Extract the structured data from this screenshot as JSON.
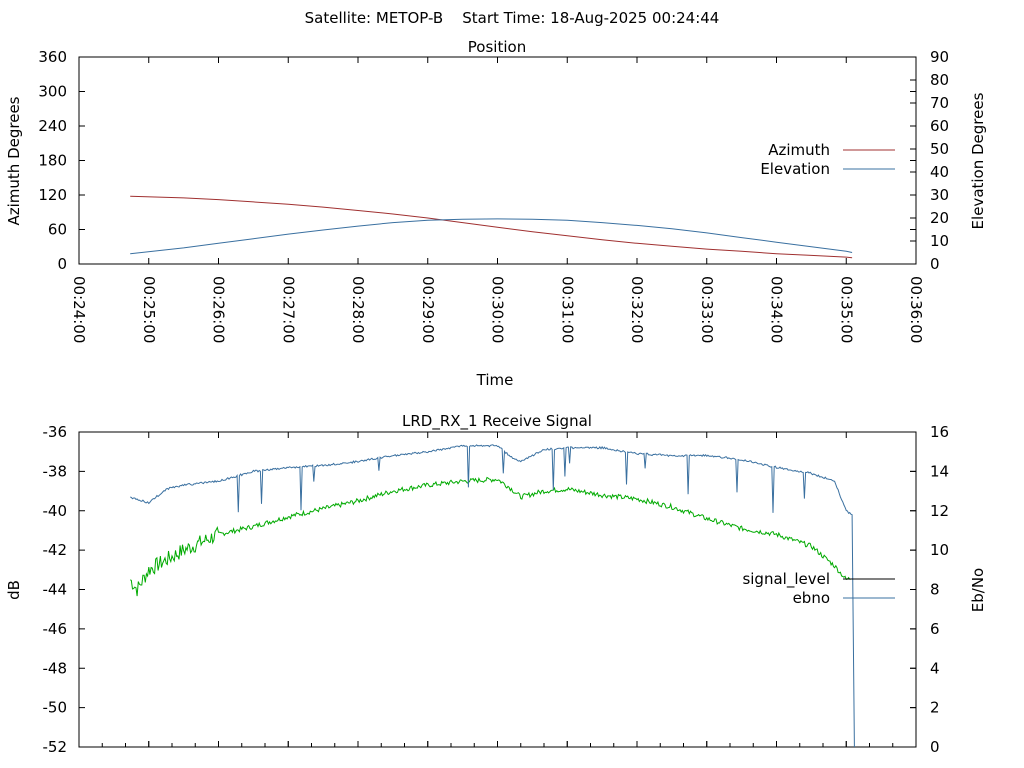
{
  "suptitle": "Satellite: METOP-B    Start Time: 18-Aug-2025 00:24:44",
  "chart_data": [
    {
      "type": "line",
      "title": "Position",
      "xlabel": "Time",
      "ylabel": "Azimuth Degrees",
      "y2label": "Elevation Degrees",
      "x_ticks": [
        "00:24:00",
        "00:25:00",
        "00:26:00",
        "00:27:00",
        "00:28:00",
        "00:29:00",
        "00:30:00",
        "00:31:00",
        "00:32:00",
        "00:33:00",
        "00:34:00",
        "00:35:00",
        "00:36:00"
      ],
      "xlim": [
        "00:24:00",
        "00:36:00"
      ],
      "ylim": [
        0,
        360
      ],
      "y_ticks": [
        "0",
        "60",
        "120",
        "180",
        "240",
        "300",
        "360"
      ],
      "y2lim": [
        0,
        90
      ],
      "y2_ticks": [
        "0",
        "10",
        "20",
        "30",
        "40",
        "50",
        "60",
        "70",
        "80",
        "90"
      ],
      "legend_position": "right",
      "grid": false,
      "series": [
        {
          "name": "Azimuth",
          "axis": "left",
          "color": "#a03030",
          "x": [
            "00:24:44",
            "00:25:30",
            "00:26:00",
            "00:26:30",
            "00:27:00",
            "00:27:30",
            "00:28:00",
            "00:28:30",
            "00:29:00",
            "00:29:30",
            "00:30:00",
            "00:30:30",
            "00:31:00",
            "00:31:30",
            "00:32:00",
            "00:32:30",
            "00:33:00",
            "00:33:30",
            "00:34:00",
            "00:34:30",
            "00:35:00",
            "00:35:05"
          ],
          "values": [
            118,
            115,
            112,
            108,
            104,
            99,
            93,
            87,
            80,
            72,
            64,
            56,
            49,
            42,
            36,
            31,
            26,
            22,
            18,
            15,
            12,
            11
          ]
        },
        {
          "name": "Elevation",
          "axis": "right",
          "color": "#3a70a0",
          "x": [
            "00:24:44",
            "00:25:30",
            "00:26:00",
            "00:26:30",
            "00:27:00",
            "00:27:30",
            "00:28:00",
            "00:28:30",
            "00:29:00",
            "00:29:30",
            "00:30:00",
            "00:30:30",
            "00:31:00",
            "00:31:30",
            "00:32:00",
            "00:32:30",
            "00:33:00",
            "00:33:30",
            "00:34:00",
            "00:34:30",
            "00:35:00",
            "00:35:05"
          ],
          "values": [
            4.5,
            7,
            9,
            11,
            13,
            14.8,
            16.5,
            18,
            19,
            19.5,
            19.6,
            19.5,
            19,
            18,
            16.8,
            15.3,
            13.5,
            11.5,
            9.5,
            7.5,
            5.5,
            5
          ]
        }
      ]
    },
    {
      "type": "line",
      "title": "LRD_RX_1 Receive Signal",
      "xlabel": "",
      "ylabel": "dB",
      "y2label": "Eb/No",
      "xlim": [
        "00:24:00",
        "00:36:00"
      ],
      "ylim": [
        -52,
        -36
      ],
      "y_ticks": [
        "-52",
        "-50",
        "-48",
        "-46",
        "-44",
        "-42",
        "-40",
        "-38",
        "-36"
      ],
      "y2lim": [
        0,
        16
      ],
      "y2_ticks": [
        "0",
        "2",
        "4",
        "6",
        "8",
        "10",
        "12",
        "14",
        "16"
      ],
      "legend_position": "right",
      "grid": false,
      "series": [
        {
          "name": "signal_level",
          "axis": "left",
          "color": "#00aa00",
          "x": [
            "00:24:44",
            "00:24:50",
            "00:25:00",
            "00:25:15",
            "00:25:30",
            "00:26:00",
            "00:26:30",
            "00:27:00",
            "00:27:30",
            "00:28:00",
            "00:28:30",
            "00:29:00",
            "00:29:30",
            "00:30:00",
            "00:30:10",
            "00:30:20",
            "00:30:40",
            "00:31:00",
            "00:31:30",
            "00:32:00",
            "00:32:30",
            "00:33:00",
            "00:33:30",
            "00:34:00",
            "00:34:30",
            "00:34:50",
            "00:35:00",
            "00:35:05"
          ],
          "values": [
            -43.5,
            -44.0,
            -43.0,
            -42.5,
            -42.0,
            -41.2,
            -40.8,
            -40.3,
            -39.9,
            -39.5,
            -39.0,
            -38.7,
            -38.5,
            -38.4,
            -38.8,
            -39.3,
            -39.0,
            -38.9,
            -39.2,
            -39.4,
            -39.8,
            -40.4,
            -40.9,
            -41.2,
            -41.8,
            -42.8,
            -43.5,
            -43.4
          ]
        },
        {
          "name": "ebno",
          "axis": "right",
          "color": "#3a70a0",
          "x": [
            "00:24:44",
            "00:25:00",
            "00:25:15",
            "00:25:30",
            "00:26:00",
            "00:26:30",
            "00:27:00",
            "00:27:30",
            "00:28:00",
            "00:28:30",
            "00:29:00",
            "00:29:30",
            "00:30:00",
            "00:30:10",
            "00:30:20",
            "00:30:40",
            "00:31:00",
            "00:31:30",
            "00:32:00",
            "00:32:30",
            "00:33:00",
            "00:33:30",
            "00:34:00",
            "00:34:30",
            "00:34:50",
            "00:35:00",
            "00:35:05",
            "00:35:07"
          ],
          "values": [
            12.7,
            12.4,
            13.1,
            13.3,
            13.5,
            14.0,
            14.2,
            14.3,
            14.5,
            14.8,
            15.0,
            15.3,
            15.3,
            14.8,
            14.5,
            15.1,
            15.2,
            15.2,
            14.9,
            14.8,
            14.8,
            14.6,
            14.2,
            13.9,
            13.5,
            12.0,
            11.8,
            0
          ]
        }
      ]
    }
  ]
}
